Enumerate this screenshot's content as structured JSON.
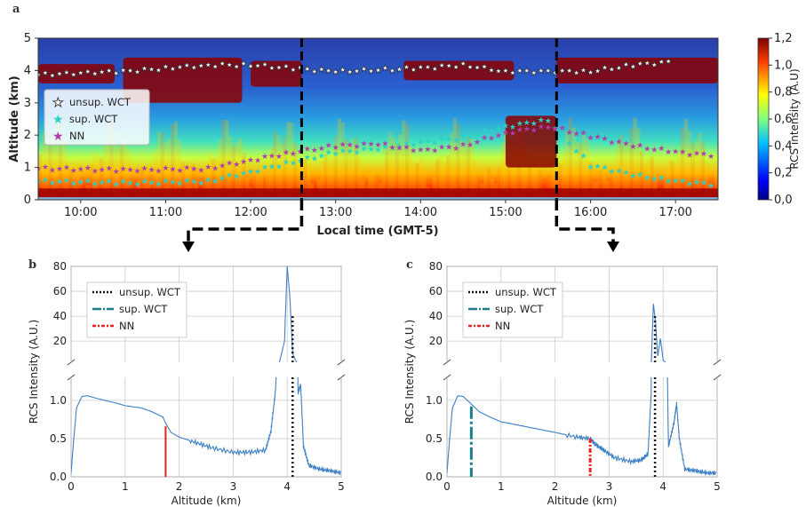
{
  "colors": {
    "profile": "#3d7fc4",
    "unsup": "#111111",
    "sup": "#1b7f8a",
    "nn": "#e8231f",
    "nn_star": "#b03db0",
    "sup_star": "#2ad1c9"
  },
  "chart_data": [
    {
      "type": "heatmap",
      "panel": "a",
      "xlabel": "Local time (GMT-5)",
      "ylabel": "Altitude (km)",
      "xticks": [
        "10:00",
        "11:00",
        "12:00",
        "13:00",
        "14:00",
        "15:00",
        "16:00",
        "17:00"
      ],
      "x_hours": [
        10,
        11,
        12,
        13,
        14,
        15,
        16,
        17
      ],
      "xlim": [
        9.5,
        17.5
      ],
      "yticks": [
        "0",
        "1",
        "2",
        "3",
        "4",
        "5"
      ],
      "ylim": [
        0,
        5
      ],
      "colorbar": {
        "label": "RCS intensity (A.U)",
        "ticks": [
          "0,0",
          "0,2",
          "0,4",
          "0,6",
          "0,8",
          "1,0",
          "1,2"
        ],
        "range": [
          0,
          1.2
        ],
        "colormap": "jet"
      },
      "legend": {
        "position": "left",
        "entries": [
          "unsup. WCT",
          "sup. WCT",
          "NN"
        ]
      },
      "cuts": [
        {
          "time": 12.6,
          "to": "b"
        },
        {
          "time": 15.6,
          "to": "c"
        }
      ],
      "nn_series": [
        [
          9.5,
          1.0
        ],
        [
          10.5,
          0.95
        ],
        [
          11.5,
          1.0
        ],
        [
          12.0,
          1.25
        ],
        [
          12.5,
          1.5
        ],
        [
          13.0,
          1.7
        ],
        [
          13.5,
          1.75
        ],
        [
          14.0,
          1.55
        ],
        [
          14.5,
          1.7
        ],
        [
          15.0,
          2.1
        ],
        [
          15.5,
          2.3
        ],
        [
          16.0,
          2.0
        ],
        [
          16.5,
          1.7
        ],
        [
          17.0,
          1.5
        ],
        [
          17.5,
          1.4
        ]
      ],
      "sup_series": [
        [
          9.5,
          0.6
        ],
        [
          10.5,
          0.55
        ],
        [
          11.5,
          0.6
        ],
        [
          12.0,
          0.9
        ],
        [
          12.5,
          1.2
        ],
        [
          13.0,
          1.5
        ],
        [
          13.5,
          1.6
        ],
        [
          14.0,
          1.8
        ],
        [
          14.5,
          1.95
        ],
        [
          15.0,
          2.3
        ],
        [
          15.5,
          2.5
        ],
        [
          16.0,
          1.1
        ],
        [
          16.5,
          0.8
        ],
        [
          17.0,
          0.6
        ],
        [
          17.5,
          0.5
        ]
      ],
      "unsup_series": [
        [
          9.5,
          3.9
        ],
        [
          10.5,
          4.0
        ],
        [
          11.0,
          4.1
        ],
        [
          11.5,
          4.2
        ],
        [
          12.0,
          4.2
        ],
        [
          12.5,
          4.1
        ],
        [
          13.0,
          4.0
        ],
        [
          14.0,
          4.1
        ],
        [
          14.5,
          4.2
        ],
        [
          15.0,
          4.0
        ],
        [
          16.0,
          4.0
        ],
        [
          16.5,
          4.2
        ],
        [
          17.0,
          4.3
        ]
      ]
    },
    {
      "type": "line",
      "panel": "b",
      "xlabel": "Altitude (km)",
      "ylabel": "RCS Intensity (A.U.)",
      "xticks": [
        "0",
        "1",
        "2",
        "3",
        "4",
        "5"
      ],
      "xlim": [
        0,
        5
      ],
      "yticks_lower": [
        "0.0",
        "0.5",
        "1.0"
      ],
      "yticks_upper": [
        "20",
        "40",
        "60",
        "80"
      ],
      "legend": {
        "position": "top-left",
        "entries": [
          "unsup. WCT",
          "sup. WCT",
          "NN"
        ]
      },
      "markers": {
        "unsup_wct": 4.1,
        "nn": 1.75
      },
      "profile": {
        "x": [
          0.0,
          0.05,
          0.1,
          0.2,
          0.3,
          0.5,
          0.8,
          1.0,
          1.3,
          1.5,
          1.7,
          1.75,
          1.85,
          2.0,
          2.3,
          2.6,
          3.0,
          3.3,
          3.6,
          3.7,
          3.78,
          3.85,
          3.95,
          4.0,
          4.05,
          4.1,
          4.15,
          4.2,
          4.25,
          4.3,
          4.4,
          4.6,
          4.8,
          5.0
        ],
        "y": [
          0.05,
          0.5,
          0.9,
          1.05,
          1.06,
          1.02,
          0.97,
          0.93,
          0.9,
          0.85,
          0.78,
          0.7,
          0.58,
          0.52,
          0.45,
          0.38,
          0.32,
          0.32,
          0.35,
          0.6,
          1.1,
          2,
          20,
          80,
          55,
          10,
          5,
          1.1,
          1.2,
          0.4,
          0.15,
          0.1,
          0.08,
          0.05
        ]
      }
    },
    {
      "type": "line",
      "panel": "c",
      "xlabel": "Altitude (km)",
      "ylabel": "RCS Intensity (A.U.)",
      "xticks": [
        "0",
        "1",
        "2",
        "3",
        "4",
        "5"
      ],
      "xlim": [
        0,
        5
      ],
      "yticks_lower": [
        "0.0",
        "0.5",
        "1.0"
      ],
      "yticks_upper": [
        "20",
        "40",
        "60",
        "80"
      ],
      "legend": {
        "position": "top-left",
        "entries": [
          "unsup. WCT",
          "sup. WCT",
          "NN"
        ]
      },
      "markers": {
        "unsup_wct": 3.85,
        "sup_wct": 0.45,
        "nn": 2.65
      },
      "profile": {
        "x": [
          0.0,
          0.05,
          0.1,
          0.2,
          0.3,
          0.45,
          0.6,
          0.8,
          1.0,
          1.5,
          2.0,
          2.4,
          2.65,
          2.75,
          2.9,
          3.1,
          3.4,
          3.6,
          3.72,
          3.78,
          3.82,
          3.86,
          3.9,
          3.95,
          4.0,
          4.1,
          4.2,
          4.25,
          4.3,
          4.4,
          4.6,
          4.8,
          5.0
        ],
        "y": [
          0.05,
          0.5,
          0.9,
          1.06,
          1.05,
          0.95,
          0.85,
          0.78,
          0.72,
          0.65,
          0.58,
          0.52,
          0.5,
          0.42,
          0.35,
          0.25,
          0.2,
          0.22,
          0.3,
          1.1,
          50,
          35,
          8,
          22,
          5,
          0.4,
          0.7,
          0.95,
          0.5,
          0.1,
          0.08,
          0.05,
          0.05
        ]
      }
    }
  ]
}
